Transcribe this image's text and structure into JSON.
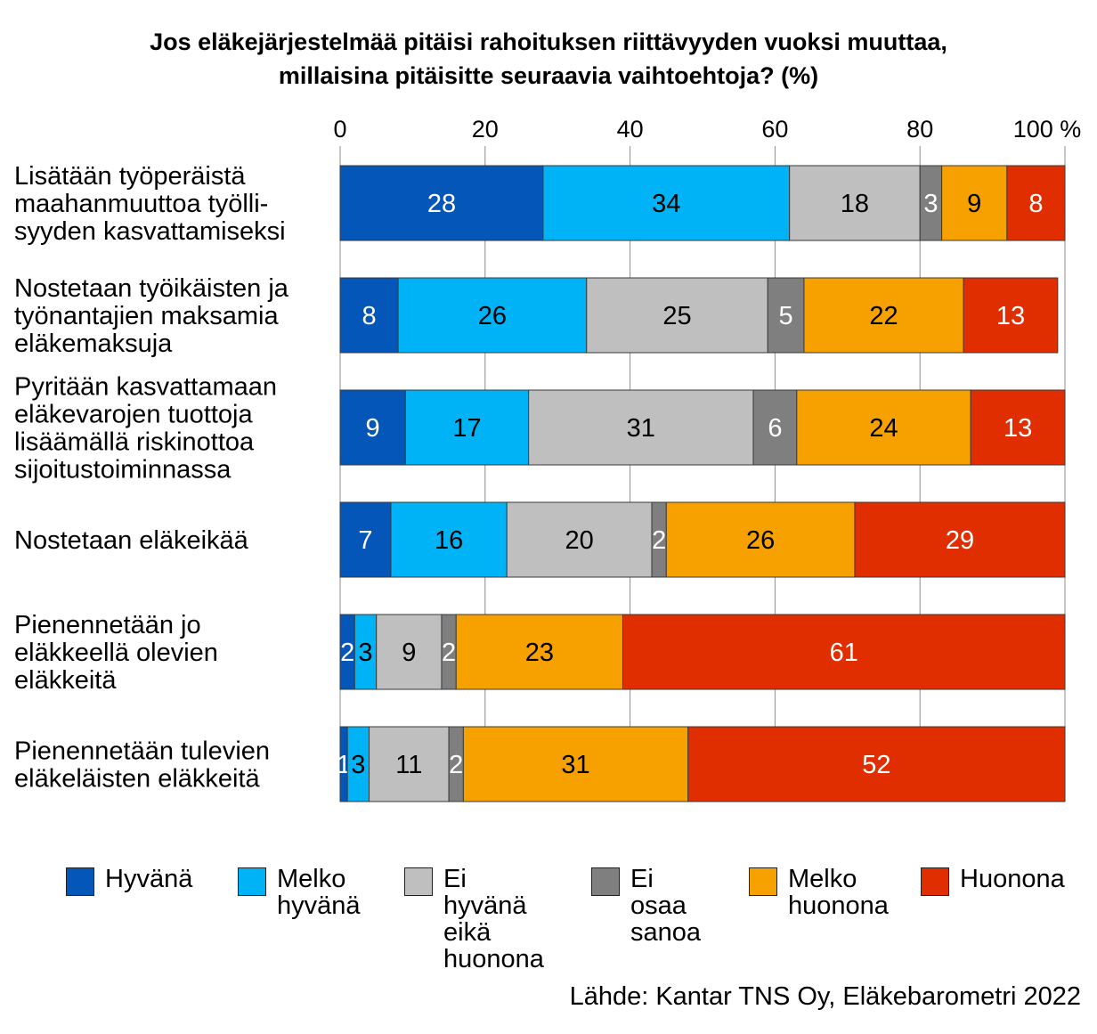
{
  "chart_data": {
    "type": "bar",
    "orientation": "horizontal",
    "stacked": true,
    "title_lines": [
      "Jos eläkejärjestelmää pitäisi rahoituksen riittävyyden vuoksi muuttaa,",
      "millaisina pitäisitte seuraavia vaihtoehtoja? (%)"
    ],
    "x_ticks": [
      "0",
      "20",
      "40",
      "60",
      "80",
      "100 %"
    ],
    "xlim": [
      0,
      100
    ],
    "grid": true,
    "legend_position": "bottom",
    "categories": [
      [
        "Lisätään työperäistä",
        "maahanmuuttoa työlli-",
        "syyden kasvattamiseksi"
      ],
      [
        "Nostetaan työikäisten ja",
        "työnantajien maksamia",
        "eläkemaksuja"
      ],
      [
        "Pyritään kasvattamaan",
        "eläkevarojen tuottoja",
        "lisäämällä riskinottoa",
        "sijoitustoiminnassa"
      ],
      [
        "Nostetaan eläkeikää"
      ],
      [
        "Pienennetään jo",
        "eläkkeellä olevien",
        "eläkkeitä"
      ],
      [
        "Pienennetään tulevien",
        "eläkeläisten eläkkeitä"
      ]
    ],
    "series": [
      {
        "name": "Hyvänä",
        "color": "#0457b8",
        "label_color": "#ffffff",
        "values": [
          28,
          8,
          9,
          7,
          2,
          1
        ]
      },
      {
        "name": "Melko hyvänä",
        "color": "#00b3f6",
        "label_color": "#000000",
        "values": [
          34,
          26,
          17,
          16,
          3,
          3
        ]
      },
      {
        "name": "Ei hyvänä eikä huonona",
        "color": "#bfbfbf",
        "label_color": "#000000",
        "values": [
          18,
          25,
          31,
          20,
          9,
          11
        ]
      },
      {
        "name": "Ei osaa sanoa",
        "color": "#7f7f7f",
        "label_color": "#ffffff",
        "values": [
          3,
          5,
          6,
          2,
          2,
          2
        ]
      },
      {
        "name": "Melko huonona",
        "color": "#f7a100",
        "label_color": "#000000",
        "values": [
          9,
          22,
          24,
          26,
          23,
          31
        ]
      },
      {
        "name": "Huonona",
        "color": "#e02e00",
        "label_color": "#ffffff",
        "values": [
          8,
          13,
          13,
          29,
          61,
          52
        ]
      }
    ],
    "legend_labels": [
      "Hyvänä",
      "Melko\nhyvänä",
      "Ei hyvänä\neikä\nhuonona",
      "Ei osaa\nsanoa",
      "Melko\nhuonona",
      "Huonona"
    ],
    "source": "Lähde: Kantar TNS Oy, Eläkebarometri 2022"
  }
}
